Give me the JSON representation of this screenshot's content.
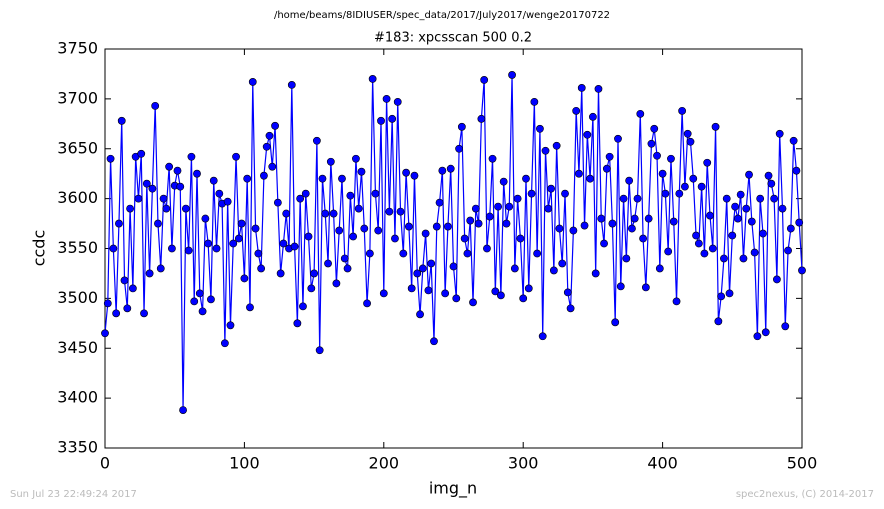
{
  "chart_data": {
    "type": "line",
    "header": "/home/beams/8IDIUSER/spec_data/2017/July2017/wenge20170722",
    "title": "#183: xpcsscan 500 0.2",
    "xlabel": "img_n",
    "ylabel": "ccdc",
    "footer_left": "Sun Jul 23 22:49:24 2017",
    "footer_right": "spec2nexus, (C) 2014-2017",
    "xlim": [
      0,
      500
    ],
    "xticks": [
      0,
      100,
      200,
      300,
      400,
      500
    ],
    "ylim": [
      3350,
      3750
    ],
    "yticks": [
      3350,
      3400,
      3450,
      3500,
      3550,
      3600,
      3650,
      3700,
      3750
    ],
    "grid": false,
    "x": [
      0,
      2,
      4,
      6,
      8,
      10,
      12,
      14,
      16,
      18,
      20,
      22,
      24,
      26,
      28,
      30,
      32,
      34,
      36,
      38,
      40,
      42,
      44,
      46,
      48,
      50,
      52,
      54,
      56,
      58,
      60,
      62,
      64,
      66,
      68,
      70,
      72,
      74,
      76,
      78,
      80,
      82,
      84,
      86,
      88,
      90,
      92,
      94,
      96,
      98,
      100,
      102,
      104,
      106,
      108,
      110,
      112,
      114,
      116,
      118,
      120,
      122,
      124,
      126,
      128,
      130,
      132,
      134,
      136,
      138,
      140,
      142,
      144,
      146,
      148,
      150,
      152,
      154,
      156,
      158,
      160,
      162,
      164,
      166,
      168,
      170,
      172,
      174,
      176,
      178,
      180,
      182,
      184,
      186,
      188,
      190,
      192,
      194,
      196,
      198,
      200,
      202,
      204,
      206,
      208,
      210,
      212,
      214,
      216,
      218,
      220,
      222,
      224,
      226,
      228,
      230,
      232,
      234,
      236,
      238,
      240,
      242,
      244,
      246,
      248,
      250,
      252,
      254,
      256,
      258,
      260,
      262,
      264,
      266,
      268,
      270,
      272,
      274,
      276,
      278,
      280,
      282,
      284,
      286,
      288,
      290,
      292,
      294,
      296,
      298,
      300,
      302,
      304,
      306,
      308,
      310,
      312,
      314,
      316,
      318,
      320,
      322,
      324,
      326,
      328,
      330,
      332,
      334,
      336,
      338,
      340,
      342,
      344,
      346,
      348,
      350,
      352,
      354,
      356,
      358,
      360,
      362,
      364,
      366,
      368,
      370,
      372,
      374,
      376,
      378,
      380,
      382,
      384,
      386,
      388,
      390,
      392,
      394,
      396,
      398,
      400,
      402,
      404,
      406,
      408,
      410,
      412,
      414,
      416,
      418,
      420,
      422,
      424,
      426,
      428,
      430,
      432,
      434,
      436,
      438,
      440,
      442,
      444,
      446,
      448,
      450,
      452,
      454,
      456,
      458,
      460,
      462,
      464,
      466,
      468,
      470,
      472,
      474,
      476,
      478,
      480,
      482,
      484,
      486,
      488,
      490,
      492,
      494,
      496,
      498,
      500
    ],
    "series": [
      {
        "name": "ccdc",
        "color": "#0000ff",
        "values": [
          3465,
          3495,
          3640,
          3550,
          3485,
          3575,
          3678,
          3518,
          3490,
          3590,
          3510,
          3642,
          3600,
          3645,
          3485,
          3615,
          3525,
          3610,
          3693,
          3575,
          3530,
          3600,
          3590,
          3632,
          3550,
          3613,
          3628,
          3612,
          3388,
          3590,
          3548,
          3642,
          3497,
          3625,
          3505,
          3487,
          3580,
          3555,
          3499,
          3618,
          3550,
          3605,
          3595,
          3455,
          3597,
          3473,
          3555,
          3642,
          3560,
          3575,
          3520,
          3620,
          3491,
          3717,
          3570,
          3545,
          3530,
          3623,
          3652,
          3663,
          3632,
          3673,
          3596,
          3525,
          3555,
          3585,
          3550,
          3714,
          3552,
          3475,
          3600,
          3492,
          3605,
          3562,
          3510,
          3525,
          3658,
          3448,
          3620,
          3585,
          3535,
          3637,
          3585,
          3515,
          3568,
          3620,
          3540,
          3530,
          3603,
          3562,
          3640,
          3590,
          3627,
          3570,
          3495,
          3545,
          3720,
          3605,
          3568,
          3678,
          3505,
          3700,
          3587,
          3680,
          3560,
          3697,
          3587,
          3545,
          3626,
          3572,
          3510,
          3623,
          3525,
          3484,
          3530,
          3565,
          3508,
          3535,
          3457,
          3572,
          3596,
          3628,
          3505,
          3572,
          3630,
          3532,
          3500,
          3650,
          3672,
          3560,
          3545,
          3578,
          3496,
          3590,
          3575,
          3680,
          3719,
          3550,
          3582,
          3640,
          3507,
          3592,
          3503,
          3617,
          3575,
          3592,
          3724,
          3530,
          3600,
          3560,
          3500,
          3620,
          3510,
          3605,
          3697,
          3545,
          3670,
          3462,
          3648,
          3590,
          3610,
          3528,
          3653,
          3570,
          3535,
          3605,
          3506,
          3490,
          3568,
          3688,
          3625,
          3711,
          3573,
          3664,
          3620,
          3682,
          3525,
          3710,
          3580,
          3555,
          3630,
          3642,
          3575,
          3476,
          3660,
          3512,
          3600,
          3540,
          3618,
          3570,
          3580,
          3600,
          3685,
          3560,
          3511,
          3580,
          3655,
          3670,
          3643,
          3530,
          3625,
          3605,
          3547,
          3640,
          3577,
          3497,
          3605,
          3688,
          3612,
          3665,
          3657,
          3620,
          3563,
          3555,
          3612,
          3545,
          3636,
          3583,
          3550,
          3672,
          3477,
          3502,
          3540,
          3600,
          3505,
          3563,
          3592,
          3580,
          3604,
          3540,
          3590,
          3624,
          3577,
          3546,
          3462,
          3600,
          3565,
          3466,
          3623,
          3615,
          3600,
          3519,
          3665,
          3590,
          3472,
          3548,
          3570,
          3658,
          3628,
          3576,
          3528
        ]
      }
    ]
  }
}
